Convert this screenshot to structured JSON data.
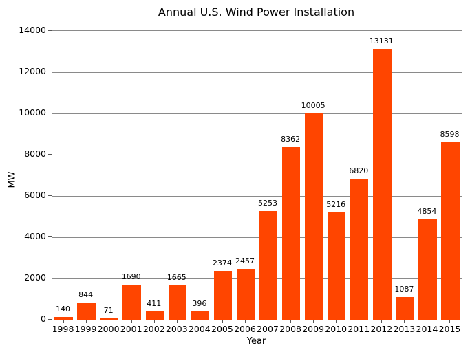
{
  "chart_data": {
    "type": "bar",
    "title": "Annual U.S. Wind Power Installation",
    "xlabel": "Year",
    "ylabel": "MW",
    "categories": [
      "1998",
      "1999",
      "2000",
      "2001",
      "2002",
      "2003",
      "2004",
      "2005",
      "2006",
      "2007",
      "2008",
      "2009",
      "2010",
      "2011",
      "2012",
      "2013",
      "2014",
      "2015"
    ],
    "values": [
      140,
      844,
      71,
      1690,
      411,
      1665,
      396,
      2374,
      2457,
      5253,
      8362,
      10005,
      5216,
      6820,
      13131,
      1087,
      4854,
      8598
    ],
    "data_labels": [
      "140",
      "844",
      "71",
      "1690",
      "411",
      "1665",
      "396",
      "2374",
      "2457",
      "5253",
      "8362",
      "10005",
      "5216",
      "6820",
      "13131",
      "1087",
      "4854",
      "8598"
    ],
    "ylim": [
      0,
      14000
    ],
    "yticks": [
      0,
      2000,
      4000,
      6000,
      8000,
      10000,
      12000,
      14000
    ],
    "ytick_labels": [
      "0",
      "2000",
      "4000",
      "6000",
      "8000",
      "10000",
      "12000",
      "14000"
    ],
    "grid": "horizontal",
    "legend": "none",
    "bar_color": "#FF4500",
    "grid_color": "#8a8a8a",
    "spine_color": "#8a8a8a"
  }
}
